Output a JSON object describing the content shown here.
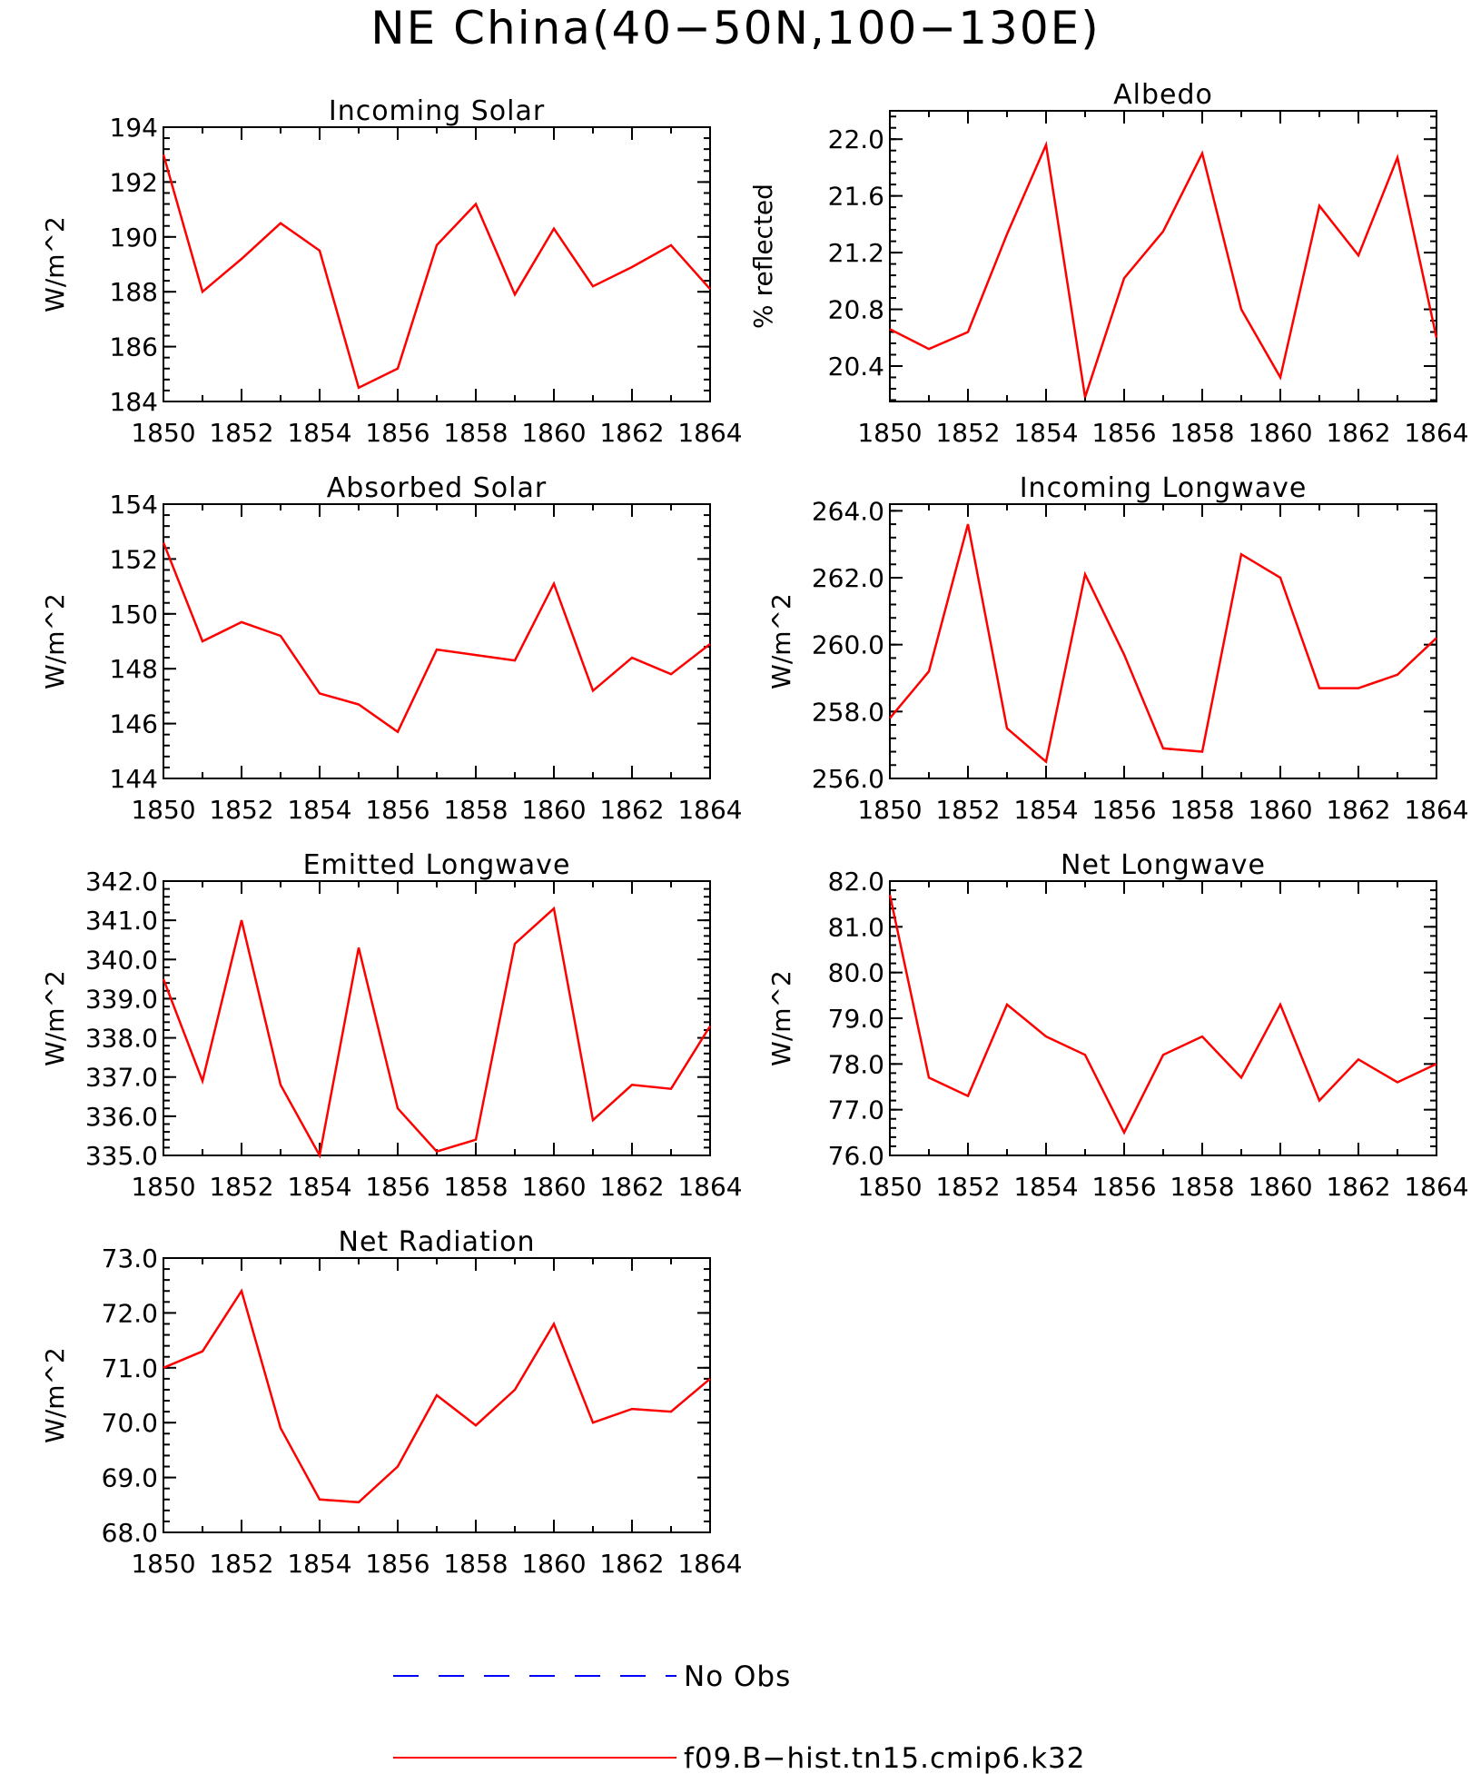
{
  "figure": {
    "title": "NE China(40−50N,100−130E)"
  },
  "colors": {
    "model": "#ff0000",
    "obs": "#0000ff",
    "axis": "#000000"
  },
  "legend": [
    {
      "label": "No Obs",
      "style": "dashed",
      "color": "#0000ff"
    },
    {
      "label": "f09.B−hist.tn15.cmip6.k32",
      "style": "solid",
      "color": "#ff0000"
    }
  ],
  "chart_data": [
    {
      "type": "line",
      "title": "Incoming Solar",
      "ylabel": "W/m^2",
      "x": [
        1850,
        1851,
        1852,
        1853,
        1854,
        1855,
        1856,
        1857,
        1858,
        1859,
        1860,
        1861,
        1862,
        1863,
        1864
      ],
      "xticks": [
        1850,
        1852,
        1854,
        1856,
        1858,
        1860,
        1862,
        1864
      ],
      "xlim": [
        1850,
        1864
      ],
      "ylim": [
        184,
        194
      ],
      "yticks": [
        184,
        186,
        188,
        190,
        192,
        194
      ],
      "ytick_labels": [
        "184",
        "186",
        "188",
        "190",
        "192",
        "194"
      ],
      "series": [
        {
          "values": [
            193.0,
            188.0,
            189.2,
            190.5,
            189.5,
            184.5,
            185.2,
            189.7,
            191.2,
            187.9,
            190.3,
            188.2,
            188.9,
            189.7,
            188.1
          ]
        }
      ]
    },
    {
      "type": "line",
      "title": "Albedo",
      "ylabel": "% reflected",
      "x": [
        1850,
        1851,
        1852,
        1853,
        1854,
        1855,
        1856,
        1857,
        1858,
        1859,
        1860,
        1861,
        1862,
        1863,
        1864
      ],
      "xticks": [
        1850,
        1852,
        1854,
        1856,
        1858,
        1860,
        1862,
        1864
      ],
      "xlim": [
        1850,
        1864
      ],
      "ylim": [
        20.15,
        22.2
      ],
      "yticks": [
        20.4,
        20.8,
        21.2,
        21.6,
        22.0
      ],
      "ytick_labels": [
        "20.4",
        "20.8",
        "21.2",
        "21.6",
        "22.0"
      ],
      "series": [
        {
          "values": [
            20.66,
            20.52,
            20.64,
            21.33,
            21.96,
            20.18,
            21.02,
            21.35,
            21.9,
            20.8,
            20.32,
            21.53,
            21.18,
            21.87,
            20.6
          ]
        }
      ]
    },
    {
      "type": "line",
      "title": "Absorbed Solar",
      "ylabel": "W/m^2",
      "x": [
        1850,
        1851,
        1852,
        1853,
        1854,
        1855,
        1856,
        1857,
        1858,
        1859,
        1860,
        1861,
        1862,
        1863,
        1864
      ],
      "xticks": [
        1850,
        1852,
        1854,
        1856,
        1858,
        1860,
        1862,
        1864
      ],
      "xlim": [
        1850,
        1864
      ],
      "ylim": [
        144,
        154
      ],
      "yticks": [
        144,
        146,
        148,
        150,
        152,
        154
      ],
      "ytick_labels": [
        "144",
        "146",
        "148",
        "150",
        "152",
        "154"
      ],
      "series": [
        {
          "values": [
            152.6,
            149.0,
            149.7,
            149.2,
            147.1,
            146.7,
            145.7,
            148.7,
            148.5,
            148.3,
            151.1,
            147.2,
            148.4,
            147.8,
            148.9
          ]
        }
      ]
    },
    {
      "type": "line",
      "title": "Incoming Longwave",
      "ylabel": "W/m^2",
      "x": [
        1850,
        1851,
        1852,
        1853,
        1854,
        1855,
        1856,
        1857,
        1858,
        1859,
        1860,
        1861,
        1862,
        1863,
        1864
      ],
      "xticks": [
        1850,
        1852,
        1854,
        1856,
        1858,
        1860,
        1862,
        1864
      ],
      "xlim": [
        1850,
        1864
      ],
      "ylim": [
        256,
        264.2
      ],
      "yticks": [
        256,
        258,
        260,
        262,
        264
      ],
      "ytick_labels": [
        "256.0",
        "258.0",
        "260.0",
        "262.0",
        "264.0"
      ],
      "series": [
        {
          "values": [
            257.8,
            259.2,
            263.6,
            257.5,
            256.5,
            262.1,
            259.7,
            256.9,
            256.8,
            262.7,
            262.0,
            258.7,
            258.7,
            259.1,
            260.2
          ]
        }
      ]
    },
    {
      "type": "line",
      "title": "Emitted Longwave",
      "ylabel": "W/m^2",
      "x": [
        1850,
        1851,
        1852,
        1853,
        1854,
        1855,
        1856,
        1857,
        1858,
        1859,
        1860,
        1861,
        1862,
        1863,
        1864
      ],
      "xticks": [
        1850,
        1852,
        1854,
        1856,
        1858,
        1860,
        1862,
        1864
      ],
      "xlim": [
        1850,
        1864
      ],
      "ylim": [
        335,
        342
      ],
      "yticks": [
        335,
        336,
        337,
        338,
        339,
        340,
        341,
        342
      ],
      "ytick_labels": [
        "335.0",
        "336.0",
        "337.0",
        "338.0",
        "339.0",
        "340.0",
        "341.0",
        "342.0"
      ],
      "series": [
        {
          "values": [
            339.5,
            336.9,
            341.0,
            336.8,
            335.0,
            340.3,
            336.2,
            335.1,
            335.4,
            340.4,
            341.3,
            335.9,
            336.8,
            336.7,
            338.3
          ]
        }
      ]
    },
    {
      "type": "line",
      "title": "Net Longwave",
      "ylabel": "W/m^2",
      "x": [
        1850,
        1851,
        1852,
        1853,
        1854,
        1855,
        1856,
        1857,
        1858,
        1859,
        1860,
        1861,
        1862,
        1863,
        1864
      ],
      "xticks": [
        1850,
        1852,
        1854,
        1856,
        1858,
        1860,
        1862,
        1864
      ],
      "xlim": [
        1850,
        1864
      ],
      "ylim": [
        76,
        82
      ],
      "yticks": [
        76,
        77,
        78,
        79,
        80,
        81,
        82
      ],
      "ytick_labels": [
        "76.0",
        "77.0",
        "78.0",
        "79.0",
        "80.0",
        "81.0",
        "82.0"
      ],
      "series": [
        {
          "values": [
            81.7,
            77.7,
            77.3,
            79.3,
            78.6,
            78.2,
            76.5,
            78.2,
            78.6,
            77.7,
            79.3,
            77.2,
            78.1,
            77.6,
            78.0
          ]
        }
      ]
    },
    {
      "type": "line",
      "title": "Net Radiation",
      "ylabel": "W/m^2",
      "x": [
        1850,
        1851,
        1852,
        1853,
        1854,
        1855,
        1856,
        1857,
        1858,
        1859,
        1860,
        1861,
        1862,
        1863,
        1864
      ],
      "xticks": [
        1850,
        1852,
        1854,
        1856,
        1858,
        1860,
        1862,
        1864
      ],
      "xlim": [
        1850,
        1864
      ],
      "ylim": [
        68,
        73
      ],
      "yticks": [
        68,
        69,
        70,
        71,
        72,
        73
      ],
      "ytick_labels": [
        "68.0",
        "69.0",
        "70.0",
        "71.0",
        "72.0",
        "73.0"
      ],
      "series": [
        {
          "values": [
            71.0,
            71.3,
            72.4,
            69.9,
            68.6,
            68.55,
            69.2,
            70.5,
            69.95,
            70.6,
            71.8,
            70.0,
            70.25,
            70.2,
            70.8
          ]
        }
      ]
    }
  ]
}
